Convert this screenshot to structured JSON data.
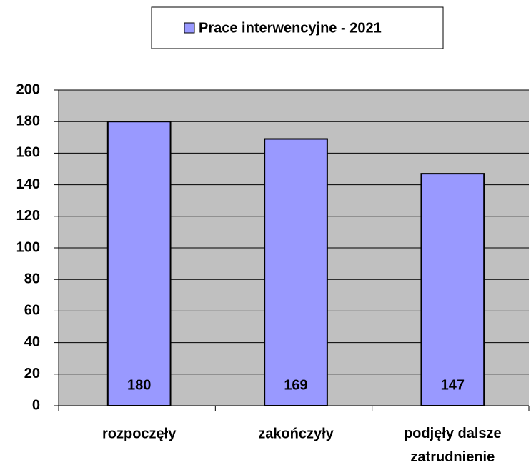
{
  "chart_data": {
    "type": "bar",
    "categories": [
      "rozpoczęły",
      "zakończyły",
      "podjęły dalsze zatrudnienie"
    ],
    "series": [
      {
        "name": "Prace interwencyjne - 2021",
        "color": "#9999ff",
        "values": [
          180,
          169,
          147
        ]
      }
    ],
    "ylim": [
      0,
      200
    ],
    "yticks": [
      0,
      20,
      40,
      60,
      80,
      100,
      120,
      140,
      160,
      180,
      200
    ],
    "grid": true,
    "legend": "top",
    "data_labels": true
  }
}
